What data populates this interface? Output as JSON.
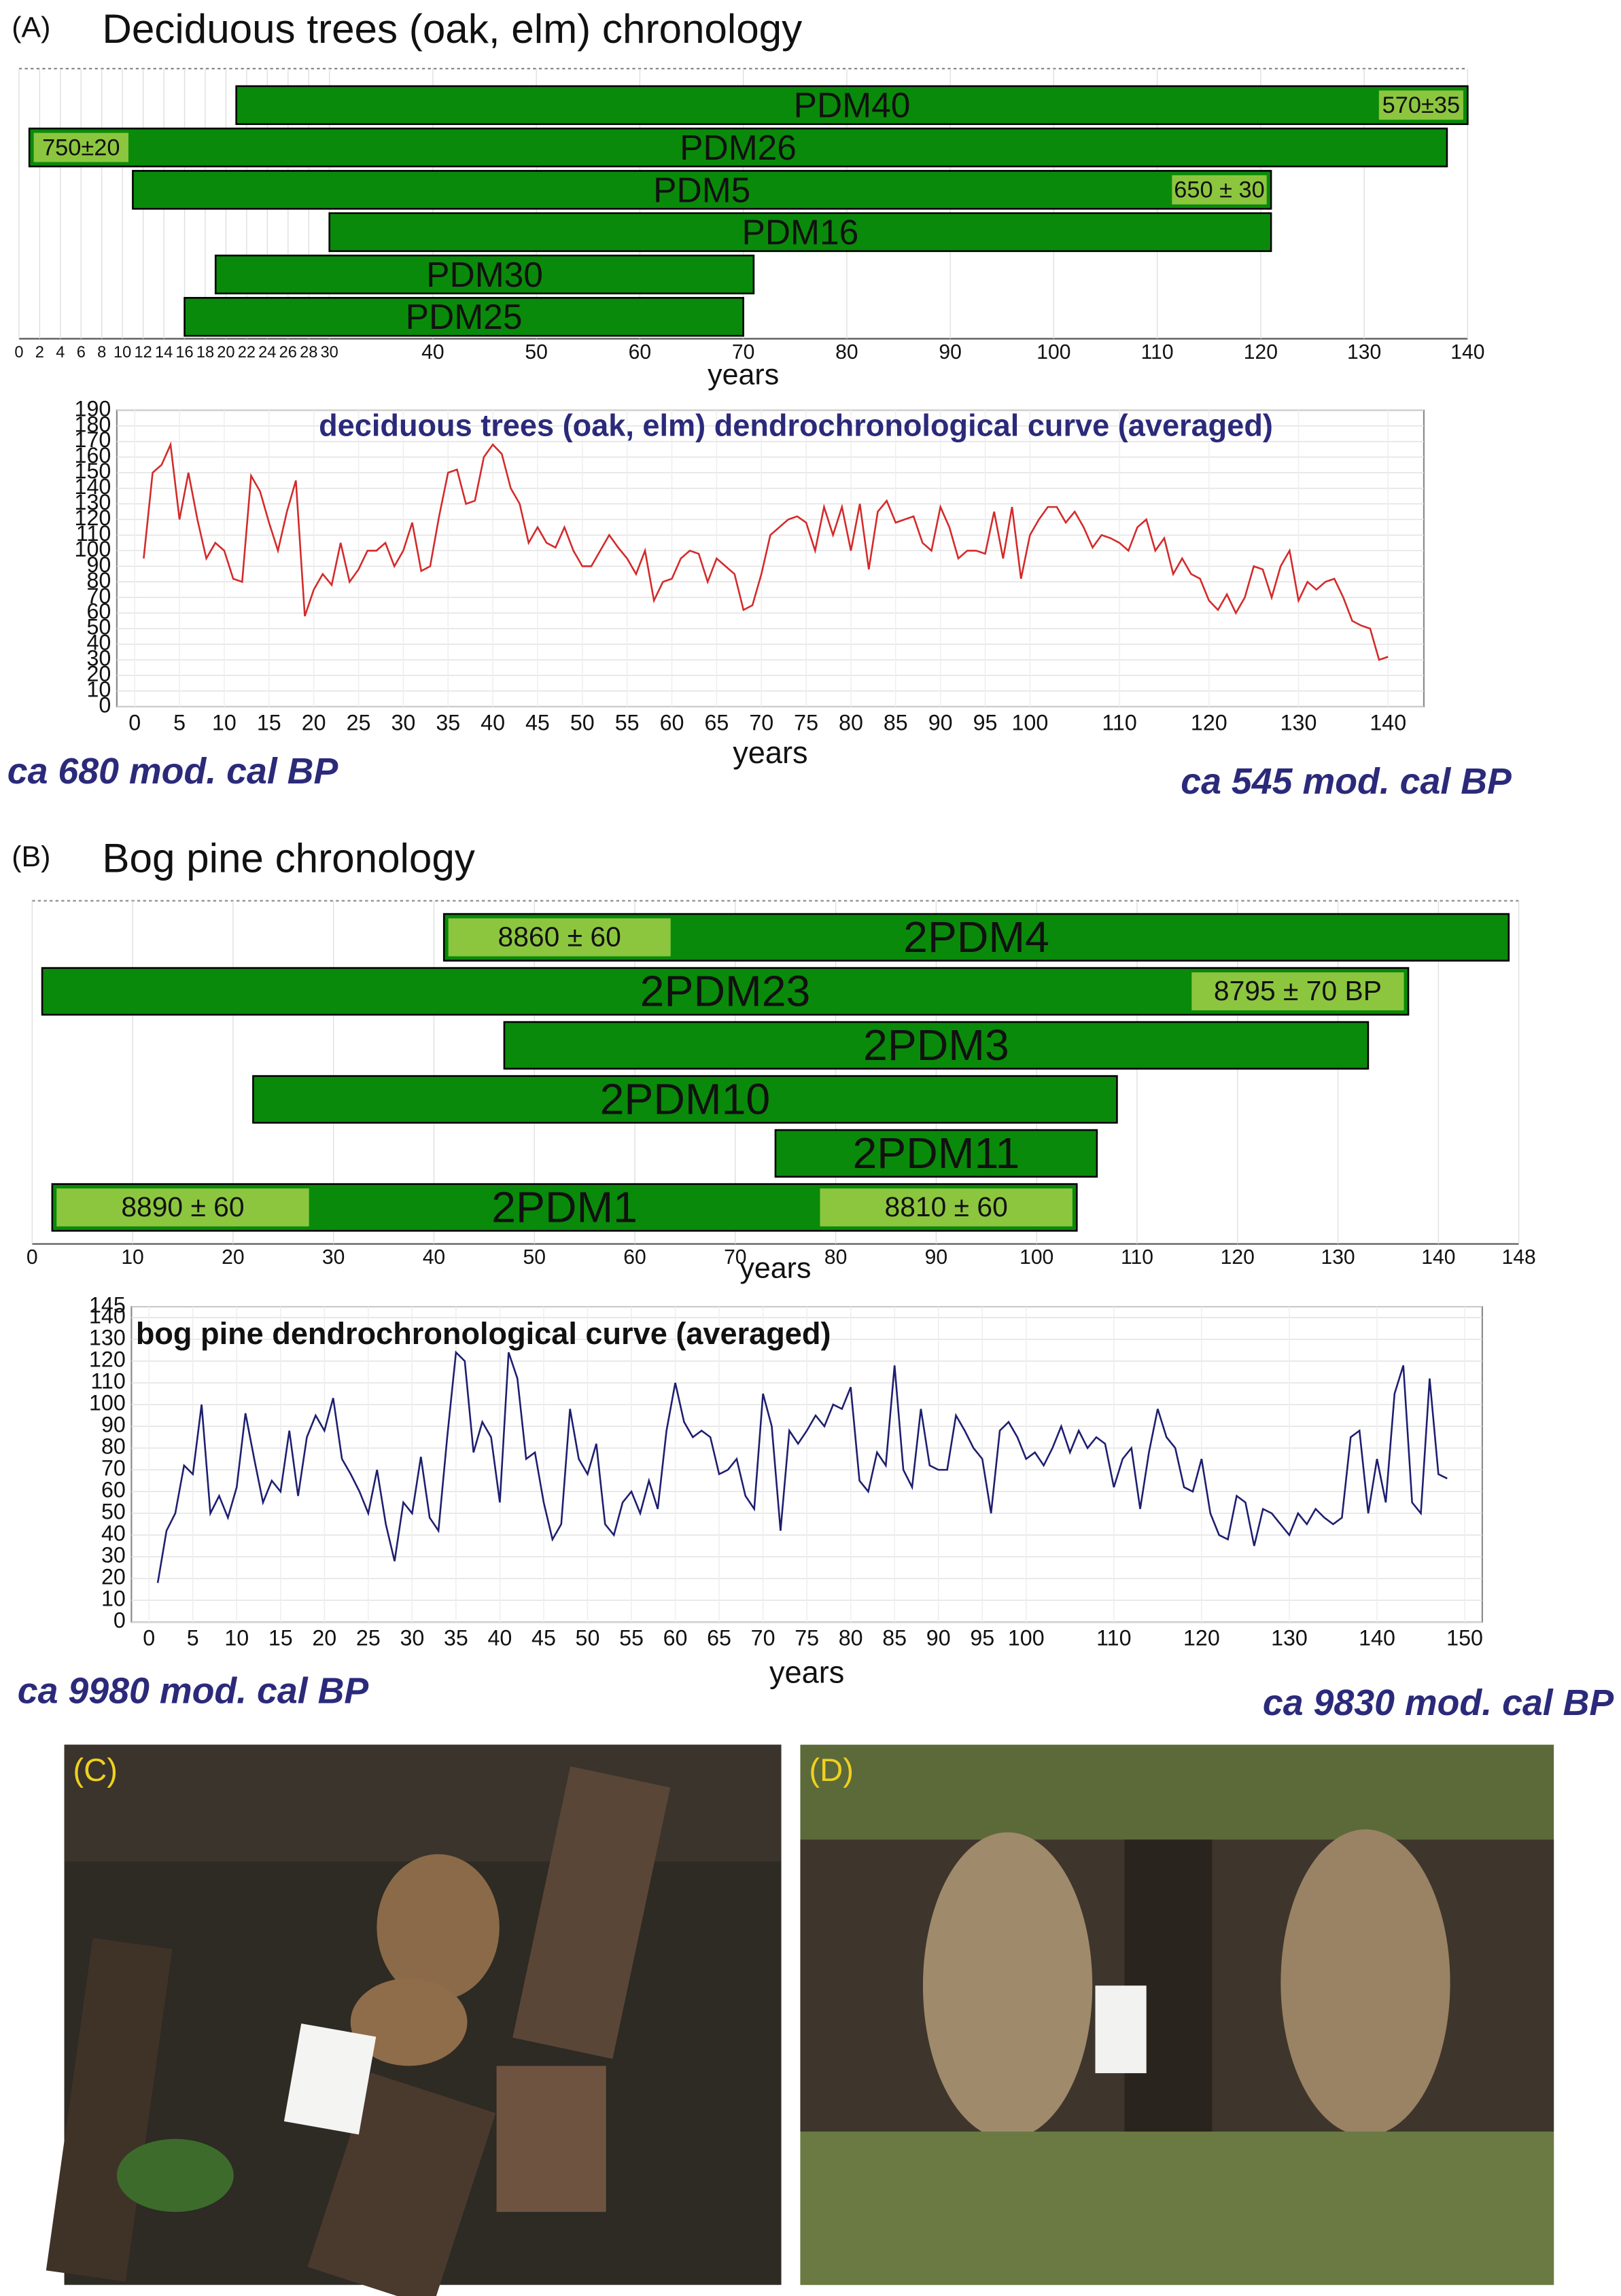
{
  "chart_data": [
    {
      "type": "gantt",
      "panel_label": "(A)",
      "title": "Deciduous trees (oak, elm) chronology",
      "xlabel": "years",
      "xlim": [
        0,
        140
      ],
      "xticks": [
        0,
        2,
        4,
        6,
        8,
        10,
        12,
        14,
        16,
        18,
        20,
        22,
        24,
        26,
        28,
        30,
        40,
        50,
        60,
        70,
        80,
        90,
        100,
        110,
        120,
        130,
        140
      ],
      "color": "#0a8a0a",
      "date_color": "#8cc63f",
      "bars": [
        {
          "name": "PDM40",
          "start": 21,
          "end": 140,
          "dates": [
            {
              "label": "570±35",
              "start": 131,
              "end": 140
            }
          ]
        },
        {
          "name": "PDM26",
          "start": 1,
          "end": 138,
          "dates": [
            {
              "label": "750±20",
              "start": 1,
              "end": 11
            }
          ]
        },
        {
          "name": "PDM5",
          "start": 11,
          "end": 121,
          "dates": [
            {
              "label": "650 ± 30",
              "start": 111,
              "end": 121
            }
          ]
        },
        {
          "name": "PDM16",
          "start": 30,
          "end": 121,
          "dates": []
        },
        {
          "name": "PDM30",
          "start": 19,
          "end": 71,
          "dates": []
        },
        {
          "name": "PDM25",
          "start": 16,
          "end": 70,
          "dates": []
        }
      ]
    },
    {
      "type": "line",
      "title": "deciduous trees (oak, elm) dendrochronological curve (averaged)",
      "xlabel": "years",
      "xlim": [
        -2,
        144
      ],
      "ylim": [
        0,
        190
      ],
      "xticks": [
        0,
        5,
        10,
        15,
        20,
        25,
        30,
        35,
        40,
        45,
        50,
        55,
        60,
        65,
        70,
        75,
        80,
        85,
        90,
        95,
        100,
        110,
        120,
        130,
        140
      ],
      "yticks": [
        0,
        10,
        20,
        30,
        40,
        50,
        60,
        70,
        80,
        90,
        100,
        110,
        120,
        130,
        140,
        150,
        160,
        170,
        180,
        190
      ],
      "grid": true,
      "annotations": [
        "ca 680 mod. cal BP",
        "ca 545 mod. cal BP"
      ],
      "series": [
        {
          "color": "#d42a2a",
          "x": [
            1,
            2,
            3,
            4,
            5,
            6,
            7,
            8,
            9,
            10,
            11,
            12,
            13,
            14,
            15,
            16,
            17,
            18,
            19,
            20,
            21,
            22,
            23,
            24,
            25,
            26,
            27,
            28,
            29,
            30,
            31,
            32,
            33,
            34,
            35,
            36,
            37,
            38,
            39,
            40,
            41,
            42,
            43,
            44,
            45,
            46,
            47,
            48,
            49,
            50,
            51,
            52,
            53,
            54,
            55,
            56,
            57,
            58,
            59,
            60,
            61,
            62,
            63,
            64,
            65,
            66,
            67,
            68,
            69,
            70,
            71,
            72,
            73,
            74,
            75,
            76,
            77,
            78,
            79,
            80,
            81,
            82,
            83,
            84,
            85,
            86,
            87,
            88,
            89,
            90,
            91,
            92,
            93,
            94,
            95,
            96,
            97,
            98,
            99,
            100,
            101,
            102,
            103,
            104,
            105,
            106,
            107,
            108,
            109,
            110,
            111,
            112,
            113,
            114,
            115,
            116,
            117,
            118,
            119,
            120,
            121,
            122,
            123,
            124,
            125,
            126,
            127,
            128,
            129,
            130,
            131,
            132,
            133,
            134,
            135,
            136,
            137,
            138,
            139,
            140
          ],
          "values": [
            95,
            150,
            155,
            168,
            120,
            150,
            120,
            95,
            105,
            100,
            82,
            80,
            148,
            138,
            118,
            100,
            125,
            145,
            58,
            75,
            85,
            78,
            105,
            80,
            88,
            100,
            100,
            105,
            90,
            100,
            118,
            87,
            90,
            122,
            150,
            152,
            130,
            132,
            160,
            168,
            162,
            140,
            130,
            105,
            115,
            105,
            102,
            115,
            100,
            90,
            90,
            100,
            110,
            102,
            95,
            85,
            100,
            68,
            80,
            82,
            95,
            100,
            98,
            80,
            95,
            90,
            85,
            62,
            65,
            85,
            110,
            115,
            120,
            122,
            118,
            100,
            128,
            110,
            128,
            100,
            130,
            88,
            125,
            132,
            118,
            120,
            122,
            105,
            100,
            128,
            115,
            95,
            100,
            100,
            98,
            125,
            95,
            128,
            82,
            110,
            120,
            128,
            128,
            118,
            125,
            115,
            102,
            110,
            108,
            105,
            100,
            115,
            120,
            100,
            108,
            85,
            95,
            85,
            82,
            68,
            62,
            72,
            60,
            70,
            90,
            88,
            70,
            90,
            100,
            68,
            80,
            75,
            80,
            82,
            70,
            55,
            52,
            50,
            30,
            32
          ]
        }
      ]
    },
    {
      "type": "gantt",
      "panel_label": "(B)",
      "title": "Bog pine chronology",
      "xlabel": "years",
      "xlim": [
        0,
        148
      ],
      "xticks": [
        0,
        10,
        20,
        30,
        40,
        50,
        60,
        70,
        80,
        90,
        100,
        110,
        120,
        130,
        140,
        148
      ],
      "color": "#0a8a0a",
      "date_color": "#8cc63f",
      "bars": [
        {
          "name": "2PDM4",
          "start": 41,
          "end": 147,
          "dates": [
            {
              "label": "8860 ± 60",
              "start": 41,
              "end": 64
            }
          ]
        },
        {
          "name": "2PDM23",
          "start": 1,
          "end": 137,
          "dates": [
            {
              "label": "8795 ± 70 BP",
              "start": 115,
              "end": 137
            }
          ]
        },
        {
          "name": "2PDM3",
          "start": 47,
          "end": 133,
          "dates": []
        },
        {
          "name": "2PDM10",
          "start": 22,
          "end": 108,
          "dates": []
        },
        {
          "name": "2PDM11",
          "start": 74,
          "end": 106,
          "dates": []
        },
        {
          "name": "2PDM1",
          "start": 2,
          "end": 104,
          "dates": [
            {
              "label": "8890 ± 60",
              "start": 2,
              "end": 28
            },
            {
              "label": "8810 ± 60",
              "start": 78,
              "end": 104
            }
          ]
        }
      ]
    },
    {
      "type": "line",
      "title": "bog pine dendrochronological curve (averaged)",
      "xlabel": "years",
      "xlim": [
        -2,
        152
      ],
      "ylim": [
        0,
        145
      ],
      "xticks": [
        0,
        5,
        10,
        15,
        20,
        25,
        30,
        35,
        40,
        45,
        50,
        55,
        60,
        65,
        70,
        75,
        80,
        85,
        90,
        95,
        100,
        110,
        120,
        130,
        140,
        150
      ],
      "yticks": [
        0,
        10,
        20,
        30,
        40,
        50,
        60,
        70,
        80,
        90,
        100,
        110,
        120,
        130,
        140,
        145
      ],
      "grid": true,
      "annotations": [
        "ca 9980 mod. cal BP",
        "ca 9830 mod. cal BP"
      ],
      "series": [
        {
          "color": "#1e1e70",
          "x": [
            1,
            2,
            3,
            4,
            5,
            6,
            7,
            8,
            9,
            10,
            11,
            12,
            13,
            14,
            15,
            16,
            17,
            18,
            19,
            20,
            21,
            22,
            23,
            24,
            25,
            26,
            27,
            28,
            29,
            30,
            31,
            32,
            33,
            34,
            35,
            36,
            37,
            38,
            39,
            40,
            41,
            42,
            43,
            44,
            45,
            46,
            47,
            48,
            49,
            50,
            51,
            52,
            53,
            54,
            55,
            56,
            57,
            58,
            59,
            60,
            61,
            62,
            63,
            64,
            65,
            66,
            67,
            68,
            69,
            70,
            71,
            72,
            73,
            74,
            75,
            76,
            77,
            78,
            79,
            80,
            81,
            82,
            83,
            84,
            85,
            86,
            87,
            88,
            89,
            90,
            91,
            92,
            93,
            94,
            95,
            96,
            97,
            98,
            99,
            100,
            101,
            102,
            103,
            104,
            105,
            106,
            107,
            108,
            109,
            110,
            111,
            112,
            113,
            114,
            115,
            116,
            117,
            118,
            119,
            120,
            121,
            122,
            123,
            124,
            125,
            126,
            127,
            128,
            129,
            130,
            131,
            132,
            133,
            134,
            135,
            136,
            137,
            138,
            139,
            140,
            141,
            142,
            143,
            144,
            145,
            146,
            147,
            148
          ],
          "values": [
            18,
            42,
            50,
            72,
            68,
            100,
            50,
            58,
            48,
            62,
            96,
            75,
            55,
            65,
            60,
            88,
            58,
            85,
            95,
            88,
            103,
            75,
            68,
            60,
            50,
            70,
            45,
            28,
            55,
            50,
            76,
            48,
            42,
            85,
            124,
            120,
            78,
            92,
            85,
            55,
            124,
            112,
            75,
            78,
            55,
            38,
            45,
            98,
            75,
            68,
            82,
            45,
            40,
            55,
            60,
            50,
            65,
            52,
            88,
            110,
            92,
            85,
            88,
            85,
            68,
            70,
            75,
            58,
            52,
            105,
            90,
            42,
            88,
            82,
            88,
            95,
            90,
            100,
            98,
            108,
            65,
            60,
            78,
            72,
            118,
            70,
            62,
            98,
            72,
            70,
            70,
            95,
            88,
            80,
            75,
            50,
            88,
            92,
            85,
            75,
            78,
            72,
            80,
            90,
            78,
            88,
            80,
            85,
            82,
            62,
            75,
            80,
            52,
            78,
            98,
            85,
            80,
            62,
            60,
            75,
            50,
            40,
            38,
            58,
            55,
            35,
            52,
            50,
            45,
            40,
            50,
            45,
            52,
            48,
            45,
            48,
            85,
            88,
            50,
            75,
            55,
            105,
            118,
            55,
            50,
            112,
            68,
            66
          ]
        }
      ]
    }
  ],
  "photos": [
    {
      "label": "(C)"
    },
    {
      "label": "(D)"
    }
  ]
}
